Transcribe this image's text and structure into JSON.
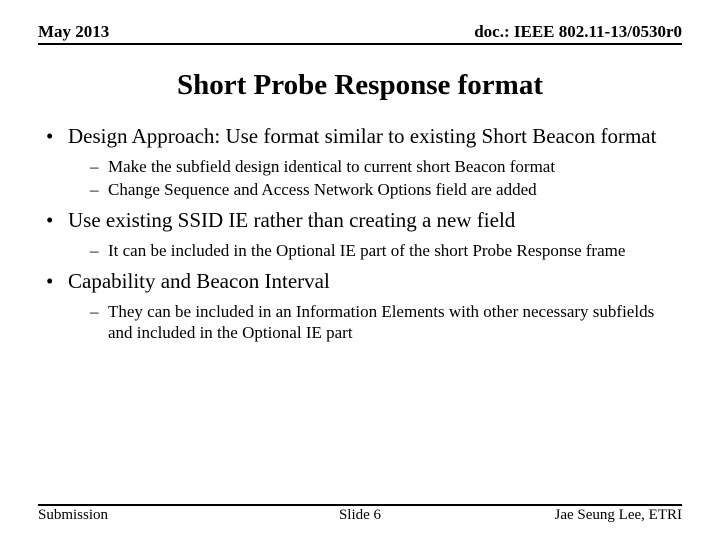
{
  "header": {
    "left": "May 2013",
    "right": "doc.: IEEE 802.11-13/0530r0"
  },
  "title": "Short Probe Response format",
  "bullets": [
    {
      "text": "Design Approach: Use format similar to existing Short Beacon format",
      "sub": [
        "Make the subfield design identical to current short Beacon format",
        "Change Sequence and Access Network Options field are added"
      ]
    },
    {
      "text": "Use existing SSID IE rather than creating a new field",
      "sub": [
        "It can be included in the Optional IE part of the short Probe Response frame"
      ]
    },
    {
      "text": "Capability and Beacon Interval",
      "sub": [
        "They can be included in an Information Elements with other necessary subfields and included in the Optional IE part"
      ]
    }
  ],
  "footer": {
    "left": "Submission",
    "center": "Slide 6",
    "right": "Jae Seung Lee, ETRI"
  },
  "colors": {
    "background": "#ffffff",
    "text": "#000000",
    "rule": "#000000"
  }
}
